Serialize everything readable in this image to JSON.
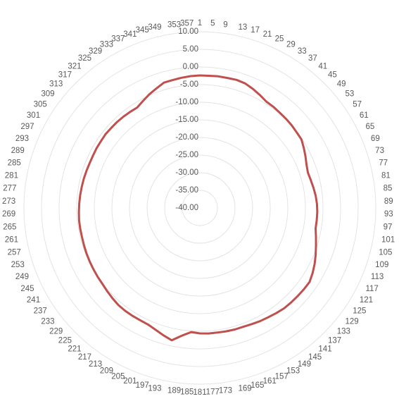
{
  "chart_data": {
    "type": "radar",
    "categories": [
      "1",
      "5",
      "9",
      "13",
      "17",
      "21",
      "25",
      "29",
      "33",
      "37",
      "41",
      "45",
      "49",
      "53",
      "57",
      "61",
      "65",
      "69",
      "73",
      "77",
      "81",
      "85",
      "89",
      "93",
      "97",
      "101",
      "105",
      "109",
      "113",
      "117",
      "121",
      "125",
      "129",
      "133",
      "137",
      "141",
      "145",
      "149",
      "153",
      "157",
      "161",
      "165",
      "169",
      "173",
      "177",
      "181",
      "185",
      "189",
      "193",
      "197",
      "201",
      "205",
      "209",
      "213",
      "217",
      "221",
      "225",
      "229",
      "233",
      "237",
      "241",
      "245",
      "249",
      "253",
      "257",
      "261",
      "265",
      "269",
      "273",
      "277",
      "281",
      "285",
      "289",
      "293",
      "297",
      "301",
      "305",
      "309",
      "313",
      "317",
      "321",
      "325",
      "329",
      "333",
      "337",
      "341",
      "345",
      "349",
      "353",
      "357"
    ],
    "series": [
      {
        "color": "#c0504d",
        "values": [
          -2.4,
          -2.4,
          -2.3,
          -2.3,
          -2.2,
          -2.4,
          -3.0,
          -3.7,
          -4.4,
          -4.5,
          -4.7,
          -4.8,
          -4.9,
          -5.1,
          -5.2,
          -5.9,
          -6.6,
          -7.3,
          -7.7,
          -7.5,
          -7.2,
          -6.9,
          -6.7,
          -6.6,
          -6.6,
          -6.6,
          -6.0,
          -5.3,
          -4.5,
          -3.7,
          -3.0,
          -2.4,
          -2.5,
          -2.6,
          -2.7,
          -2.8,
          -3.1,
          -3.4,
          -3.6,
          -3.9,
          -4.1,
          -4.1,
          -4.2,
          -4.3,
          -4.3,
          -4.4,
          -4.7,
          -3.4,
          -1.6,
          -2.4,
          -3.2,
          -3.8,
          -3.9,
          -3.9,
          -3.9,
          -4.0,
          -4.3,
          -4.6,
          -4.9,
          -5.0,
          -5.1,
          -5.2,
          -5.3,
          -5.4,
          -5.5,
          -5.5,
          -5.5,
          -5.6,
          -5.7,
          -5.8,
          -5.9,
          -6.0,
          -6.1,
          -6.2,
          -6.2,
          -6.1,
          -6.1,
          -6.0,
          -6.1,
          -6.1,
          -6.2,
          -6.3,
          -6.4,
          -5.6,
          -4.7,
          -3.9,
          -3.0,
          -2.9,
          -2.7,
          -2.5
        ]
      }
    ],
    "ylim": [
      -40,
      10
    ],
    "yticks": [
      {
        "value": -40,
        "label": "-40.00"
      },
      {
        "value": -35,
        "label": "-35.00"
      },
      {
        "value": -30,
        "label": "-30.00"
      },
      {
        "value": -25,
        "label": "-25.00"
      },
      {
        "value": -20,
        "label": "-20.00"
      },
      {
        "value": -15,
        "label": "-15.00"
      },
      {
        "value": -10,
        "label": "-10.00"
      },
      {
        "value": -5,
        "label": "-5.00"
      },
      {
        "value": 0,
        "label": "0.00"
      },
      {
        "value": 5,
        "label": "5.00"
      },
      {
        "value": 10,
        "label": "10.00"
      }
    ],
    "grid": true
  }
}
